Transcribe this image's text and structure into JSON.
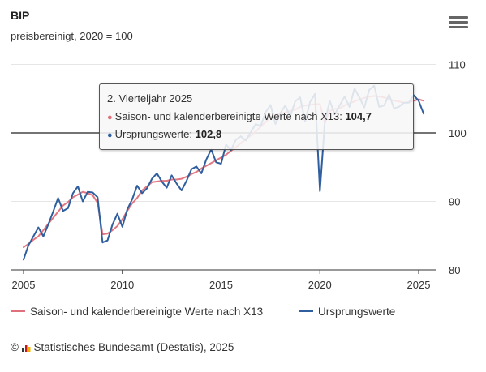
{
  "header": {
    "title": "BIP",
    "subtitle": "preisbereinigt, 2020 = 100"
  },
  "menu": {
    "icon": "hamburger-menu-icon"
  },
  "legend": {
    "items": [
      {
        "label": "Saison- und kalenderbereinigte Werte nach X13",
        "color": "#e0707b"
      },
      {
        "label": "Ursprungswerte",
        "color": "#2f5f9e"
      }
    ]
  },
  "tooltip": {
    "header": "2. Vierteljahr 2025",
    "rows": [
      {
        "label": "Saison- und kalenderbereinigte Werte nach X13:",
        "value": "104,7",
        "color": "#e0707b"
      },
      {
        "label": "Ursprungswerte:",
        "value": "102,8",
        "color": "#2f5f9e"
      }
    ]
  },
  "credits": {
    "symbol": "©",
    "text": "Statistisches Bundesamt (Destatis), 2025"
  },
  "chart_data": {
    "type": "line",
    "title": "BIP",
    "subtitle": "preisbereinigt, 2020 = 100",
    "x_start": "2005 Q1",
    "x_ticks": [
      "2005",
      "2010",
      "2015",
      "2020",
      "2025"
    ],
    "y_ticks": [
      "80",
      "90",
      "100",
      "110"
    ],
    "ylim": [
      80,
      112
    ],
    "reference_line": 100,
    "grid": "horizontal",
    "legend_position": "bottom",
    "series": [
      {
        "name": "Saison- und kalenderbereinigte Werte nach X13",
        "color": "#e0707b",
        "values": [
          83.3,
          83.8,
          84.4,
          84.9,
          85.8,
          86.7,
          87.6,
          88.5,
          89.4,
          89.9,
          90.6,
          91.0,
          91.4,
          91.2,
          90.9,
          89.8,
          85.2,
          85.3,
          85.8,
          86.4,
          87.4,
          88.6,
          89.7,
          90.5,
          91.6,
          92.2,
          92.8,
          92.9,
          93.0,
          93.0,
          93.2,
          93.2,
          93.3,
          93.6,
          94.0,
          94.3,
          94.8,
          95.2,
          95.6,
          96.0,
          96.4,
          96.8,
          97.4,
          97.9,
          98.5,
          99.1,
          99.6,
          100.2,
          100.9,
          101.6,
          102.3,
          102.6,
          102.8,
          103.0,
          103.2,
          103.4,
          103.8,
          104.0,
          104.1,
          104.2,
          104.2,
          101.5,
          103.2,
          103.5,
          103.6,
          104.0,
          104.3,
          104.6,
          104.9,
          105.1,
          105.3,
          105.4,
          105.3,
          105.2,
          104.9,
          104.7,
          104.6,
          104.4,
          104.5,
          104.7,
          104.9,
          104.7
        ]
      },
      {
        "name": "Ursprungswerte",
        "color": "#2f5f9e",
        "values": [
          81.5,
          83.6,
          84.9,
          86.2,
          84.9,
          86.6,
          88.5,
          90.5,
          88.6,
          89.0,
          91.2,
          92.2,
          90.0,
          91.4,
          91.3,
          90.6,
          84.0,
          84.3,
          86.6,
          88.2,
          86.3,
          88.8,
          90.3,
          92.3,
          91.2,
          91.9,
          93.3,
          94.1,
          92.9,
          92.0,
          93.8,
          92.6,
          91.6,
          93.0,
          94.7,
          95.1,
          94.1,
          96.1,
          97.6,
          95.7,
          95.5,
          98.3,
          97.5,
          99.0,
          99.5,
          98.9,
          100.1,
          101.3,
          101.0,
          103.0,
          104.1,
          101.3,
          102.9,
          104.0,
          102.4,
          104.6,
          105.2,
          101.7,
          104.5,
          105.7,
          91.5,
          101.5,
          104.7,
          102.7,
          104.0,
          105.3,
          103.8,
          106.5,
          105.2,
          103.7,
          106.3,
          106.9,
          103.8,
          104.0,
          105.6,
          103.6,
          103.8,
          104.4,
          104.4,
          105.5,
          104.7,
          102.8
        ]
      }
    ]
  }
}
